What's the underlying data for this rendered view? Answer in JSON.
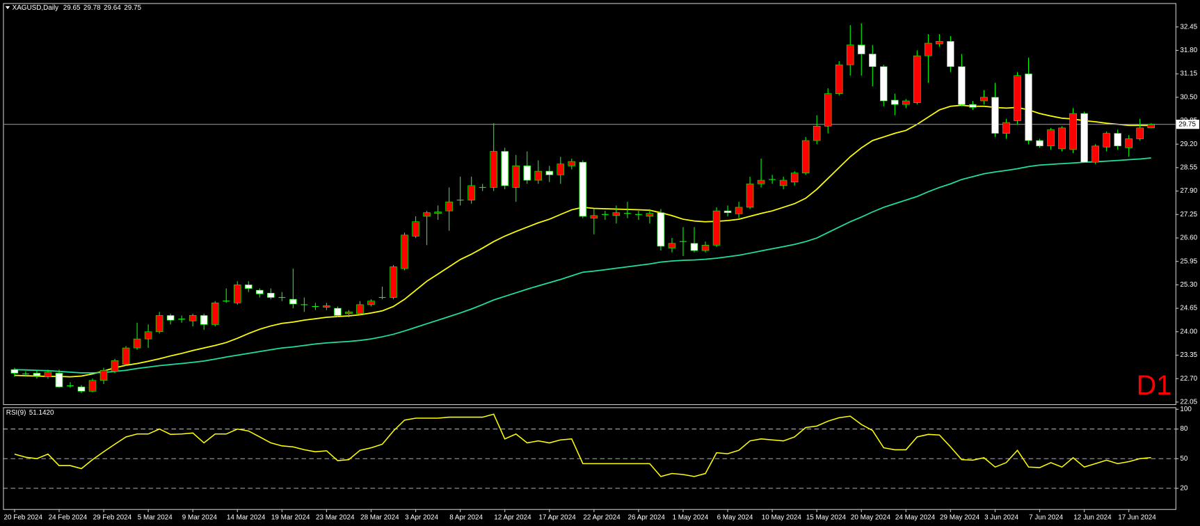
{
  "chart_data": [
    {
      "type": "candlestick",
      "title": "XAGUSD,Daily",
      "timeframe_label": "D1",
      "categories": [
        "20 Feb 2024",
        null,
        null,
        null,
        "24 Feb 2024",
        null,
        null,
        null,
        "29 Feb 2024",
        null,
        null,
        null,
        "5 Mar 2024",
        null,
        null,
        null,
        "9 Mar 2024",
        null,
        null,
        null,
        "14 Mar 2024",
        null,
        null,
        null,
        "19 Mar 2024",
        null,
        null,
        null,
        "23 Mar 2024",
        null,
        null,
        null,
        "28 Mar 2024",
        null,
        null,
        null,
        "3 Apr 2024",
        null,
        null,
        null,
        "8 Apr 2024",
        null,
        null,
        null,
        "12 Apr 2024",
        null,
        null,
        null,
        "17 Apr 2024",
        null,
        null,
        null,
        "22 Apr 2024",
        null,
        null,
        null,
        "26 Apr 2024",
        null,
        null,
        null,
        "1 May 2024",
        null,
        null,
        null,
        "6 May 2024",
        null,
        null,
        null,
        "10 May 2024",
        null,
        null,
        null,
        "15 May 2024",
        null,
        null,
        null,
        "20 May 2024",
        null,
        null,
        null,
        "24 May 2024",
        null,
        null,
        null,
        "29 May 2024",
        null,
        null,
        null,
        "3 Jun 2024",
        null,
        null,
        null,
        "7 Jun 2024",
        null,
        null,
        null,
        "12 Jun 2024",
        null,
        null,
        null,
        "17 Jun 2024",
        null,
        null
      ],
      "open": [
        22.95,
        22.83,
        22.85,
        22.75,
        22.85,
        22.5,
        22.47,
        22.35,
        22.65,
        22.9,
        23.1,
        23.55,
        23.8,
        24.0,
        24.45,
        24.35,
        24.3,
        24.45,
        24.2,
        24.85,
        24.8,
        25.3,
        25.15,
        25.07,
        24.95,
        24.9,
        24.75,
        24.7,
        24.68,
        24.65,
        24.5,
        24.5,
        24.75,
        24.95,
        24.95,
        25.75,
        26.65,
        27.2,
        27.28,
        27.35,
        27.65,
        27.65,
        28.0,
        28.0,
        29.0,
        28.0,
        28.6,
        28.2,
        28.45,
        28.35,
        28.6,
        28.7,
        27.15,
        27.25,
        27.22,
        27.28,
        27.25,
        27.2,
        27.3,
        26.32,
        26.5,
        26.45,
        26.25,
        26.4,
        27.35,
        27.27,
        27.45,
        28.1,
        28.22,
        28.05,
        28.15,
        28.4,
        29.3,
        29.7,
        30.6,
        31.4,
        31.95,
        31.7,
        31.35,
        30.42,
        30.3,
        30.35,
        31.65,
        31.98,
        32.05,
        31.35,
        30.3,
        30.4,
        30.5,
        29.5,
        29.85,
        31.15,
        29.3,
        29.15,
        29.07,
        29.05,
        30.05,
        28.7,
        29.12,
        29.5,
        29.1,
        29.35,
        29.65
      ],
      "high": [
        23.0,
        22.9,
        22.92,
        22.95,
        22.95,
        22.6,
        22.52,
        22.7,
        23.0,
        23.25,
        23.6,
        24.25,
        24.2,
        24.55,
        24.5,
        24.45,
        24.5,
        24.5,
        24.85,
        25.2,
        25.4,
        25.4,
        25.2,
        25.2,
        25.1,
        25.75,
        24.95,
        24.8,
        24.8,
        24.7,
        24.6,
        24.85,
        24.9,
        25.25,
        25.85,
        26.75,
        27.2,
        27.35,
        27.5,
        28.0,
        28.3,
        28.3,
        28.1,
        29.78,
        29.1,
        28.9,
        29.0,
        28.75,
        28.6,
        28.85,
        28.8,
        28.75,
        27.4,
        27.35,
        27.5,
        27.6,
        27.35,
        27.4,
        27.4,
        26.6,
        26.9,
        26.9,
        26.5,
        27.45,
        27.5,
        27.6,
        28.3,
        28.8,
        28.35,
        28.3,
        28.45,
        29.4,
        30.0,
        30.75,
        31.5,
        32.5,
        32.55,
        31.95,
        31.4,
        30.6,
        30.45,
        31.8,
        32.25,
        32.25,
        32.2,
        31.7,
        30.4,
        30.7,
        30.9,
        29.9,
        31.2,
        31.6,
        29.35,
        29.65,
        29.7,
        30.2,
        30.1,
        29.2,
        29.55,
        29.6,
        29.45,
        29.9,
        29.78
      ],
      "low": [
        22.75,
        22.75,
        22.7,
        22.7,
        22.45,
        22.45,
        22.3,
        22.33,
        22.55,
        22.85,
        23.05,
        23.5,
        23.55,
        23.95,
        24.2,
        24.25,
        24.15,
        24.05,
        24.15,
        24.8,
        24.75,
        25.1,
        24.95,
        24.9,
        24.85,
        24.65,
        24.55,
        24.6,
        24.6,
        24.4,
        24.4,
        24.45,
        24.7,
        24.9,
        24.9,
        25.7,
        26.6,
        26.4,
        27.1,
        26.8,
        27.5,
        27.55,
        27.9,
        27.9,
        27.95,
        27.6,
        28.1,
        28.1,
        28.15,
        28.1,
        28.5,
        27.15,
        26.7,
        27.1,
        27.0,
        27.15,
        27.1,
        27.0,
        26.25,
        26.2,
        26.1,
        26.2,
        26.2,
        26.35,
        27.2,
        27.15,
        27.4,
        28.0,
        28.1,
        27.95,
        28.05,
        28.35,
        29.2,
        29.5,
        30.55,
        31.1,
        31.1,
        30.8,
        30.25,
        30.0,
        30.2,
        30.3,
        30.9,
        31.9,
        31.2,
        30.25,
        30.15,
        30.3,
        29.4,
        29.35,
        29.75,
        29.2,
        29.1,
        29.05,
        29.0,
        28.95,
        28.7,
        28.65,
        29.0,
        29.05,
        28.85,
        29.3,
        29.64
      ],
      "close": [
        22.85,
        22.83,
        22.78,
        22.88,
        22.47,
        22.5,
        22.35,
        22.65,
        22.93,
        23.2,
        23.55,
        23.8,
        24.0,
        24.45,
        24.32,
        24.35,
        24.45,
        24.2,
        24.8,
        24.85,
        25.3,
        25.2,
        25.05,
        24.95,
        24.95,
        24.77,
        24.75,
        24.7,
        24.72,
        24.45,
        24.55,
        24.75,
        24.85,
        24.95,
        25.8,
        26.68,
        27.05,
        27.3,
        27.32,
        27.6,
        27.65,
        28.05,
        28.0,
        29.0,
        28.05,
        28.6,
        28.2,
        28.45,
        28.35,
        28.65,
        28.72,
        27.2,
        27.22,
        27.25,
        27.3,
        27.28,
        27.25,
        27.28,
        26.37,
        26.45,
        26.5,
        26.25,
        26.4,
        27.35,
        27.3,
        27.45,
        28.1,
        28.2,
        28.22,
        28.2,
        28.4,
        29.3,
        29.7,
        30.6,
        31.4,
        31.95,
        31.7,
        31.35,
        30.4,
        30.3,
        30.4,
        31.65,
        32.0,
        32.05,
        31.35,
        30.3,
        30.22,
        30.5,
        29.5,
        29.8,
        31.1,
        29.3,
        29.15,
        29.6,
        29.65,
        30.05,
        28.7,
        29.15,
        29.5,
        29.15,
        29.35,
        29.65,
        29.75
      ],
      "up_color": "#ff0000",
      "down_color": "#ffffff",
      "wick_color": "#00ff00",
      "last_price_color": "#8c8c8c",
      "overlays": [
        {
          "color": "#ffff00",
          "values": [
            22.79,
            22.78,
            22.77,
            22.76,
            22.76,
            22.75,
            22.77,
            22.83,
            22.91,
            23.0,
            23.07,
            23.12,
            23.18,
            23.25,
            23.33,
            23.4,
            23.48,
            23.55,
            23.62,
            23.7,
            23.82,
            23.95,
            24.07,
            24.16,
            24.23,
            24.27,
            24.32,
            24.36,
            24.4,
            24.42,
            24.44,
            24.47,
            24.52,
            24.58,
            24.7,
            24.9,
            25.15,
            25.4,
            25.6,
            25.8,
            26.0,
            26.15,
            26.32,
            26.5,
            26.65,
            26.78,
            26.9,
            27.02,
            27.12,
            27.25,
            27.38,
            27.45,
            27.42,
            27.41,
            27.4,
            27.39,
            27.38,
            27.37,
            27.3,
            27.22,
            27.12,
            27.07,
            27.05,
            27.06,
            27.08,
            27.12,
            27.2,
            27.28,
            27.35,
            27.45,
            27.55,
            27.7,
            27.95,
            28.25,
            28.55,
            28.85,
            29.1,
            29.3,
            29.4,
            29.5,
            29.58,
            29.75,
            29.95,
            30.15,
            30.25,
            30.28,
            30.25,
            30.25,
            30.22,
            30.2,
            30.22,
            30.15,
            30.05,
            29.98,
            29.92,
            29.9,
            29.85,
            29.82,
            29.78,
            29.75,
            29.72,
            29.72,
            29.72
          ]
        },
        {
          "color": "#20e0a0",
          "values": [
            22.95,
            22.94,
            22.93,
            22.92,
            22.9,
            22.88,
            22.86,
            22.86,
            22.87,
            22.9,
            22.93,
            22.98,
            23.02,
            23.06,
            23.09,
            23.12,
            23.15,
            23.19,
            23.24,
            23.3,
            23.35,
            23.4,
            23.45,
            23.5,
            23.55,
            23.58,
            23.62,
            23.66,
            23.69,
            23.71,
            23.73,
            23.76,
            23.8,
            23.86,
            23.93,
            24.02,
            24.12,
            24.22,
            24.32,
            24.42,
            24.52,
            24.63,
            24.75,
            24.88,
            24.98,
            25.08,
            25.18,
            25.27,
            25.36,
            25.45,
            25.55,
            25.65,
            25.68,
            25.72,
            25.76,
            25.8,
            25.84,
            25.88,
            25.93,
            25.96,
            25.98,
            25.99,
            26.01,
            26.04,
            26.08,
            26.12,
            26.18,
            26.24,
            26.3,
            26.36,
            26.42,
            26.5,
            26.6,
            26.75,
            26.9,
            27.05,
            27.18,
            27.32,
            27.45,
            27.55,
            27.65,
            27.75,
            27.88,
            28.0,
            28.1,
            28.22,
            28.3,
            28.38,
            28.43,
            28.47,
            28.52,
            28.58,
            28.62,
            28.64,
            28.66,
            28.68,
            28.7,
            28.71,
            28.73,
            28.75,
            28.77,
            28.79,
            28.82
          ]
        }
      ],
      "ylim": [
        21.99,
        33.11
      ],
      "yticks": [
        32.45,
        {
          "value": 31.8,
          "label": "31.80"
        },
        31.15,
        {
          "value": 30.5,
          "label": "30.50"
        },
        29.85,
        {
          "value": 29.2,
          "label": "29.20"
        },
        28.55,
        {
          "value": 27.9,
          "label": "27.90"
        },
        27.25,
        {
          "value": 26.6,
          "label": "26.60"
        },
        25.95,
        {
          "value": 25.3,
          "label": "25.30"
        },
        24.65,
        {
          "value": 24,
          "label": "24.00"
        },
        23.35,
        {
          "value": 22.7,
          "label": "22.70"
        },
        22.05
      ]
    },
    {
      "type": "line",
      "name": "RSI(9)",
      "current_label": "51.1420",
      "color": "#ffff00",
      "values": [
        54.6,
        51.5,
        50,
        54.6,
        43,
        43,
        40,
        49,
        57,
        64.6,
        72,
        75,
        75,
        80,
        74.6,
        75,
        76,
        66,
        75,
        75,
        80,
        78,
        72,
        66,
        63,
        62,
        59,
        57,
        58,
        48,
        49,
        58.5,
        61,
        64.6,
        78,
        89,
        91,
        91,
        91,
        92,
        92,
        92,
        92,
        95,
        70,
        75,
        66,
        68,
        66,
        69,
        70,
        45,
        45,
        45,
        45,
        45,
        45,
        45,
        32,
        35,
        34,
        32,
        35,
        56,
        55,
        58.5,
        68,
        70,
        69,
        68,
        72,
        81.5,
        83,
        88,
        91.5,
        93,
        84.6,
        78.5,
        61,
        59,
        59,
        72,
        74.6,
        74,
        62,
        49,
        48.5,
        51,
        41.5,
        46,
        58.5,
        41.5,
        41,
        46,
        41.5,
        51,
        41.5,
        45,
        48.5,
        45,
        47,
        50,
        51.142
      ],
      "ylim": [
        -1,
        102
      ],
      "yticks": [
        100,
        80,
        50,
        20
      ],
      "levels": [
        80,
        50,
        20
      ]
    }
  ]
}
